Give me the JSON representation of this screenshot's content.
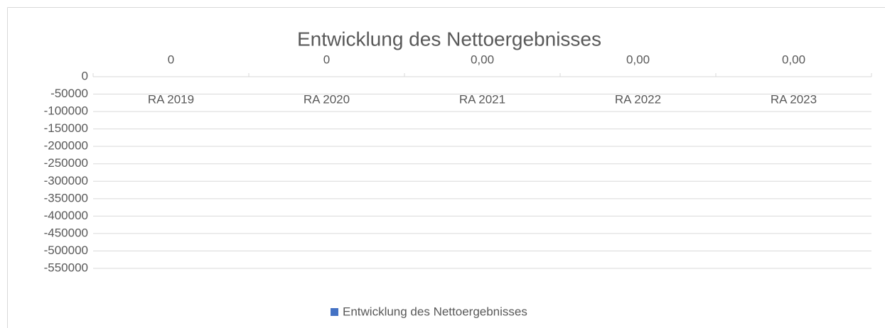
{
  "chart_data": {
    "type": "bar",
    "title": "Entwicklung des Nettoergebnisses",
    "categories": [
      "RA 2019",
      "RA 2020",
      "RA 2021",
      "RA 2022",
      "RA 2023"
    ],
    "series": [
      {
        "name": "Entwicklung des Nettoergebnisses",
        "color": "#4472c4",
        "values": [
          0,
          0,
          0,
          0,
          0
        ],
        "value_labels": [
          "0",
          "0",
          "0,00",
          "0,00",
          "0,00"
        ]
      }
    ],
    "ylim": [
      -550000,
      0
    ],
    "yticks": [
      0,
      -50000,
      -100000,
      -150000,
      -200000,
      -250000,
      -300000,
      -350000,
      -400000,
      -450000,
      -500000,
      -550000
    ],
    "grid": true,
    "legend": "bottom"
  }
}
